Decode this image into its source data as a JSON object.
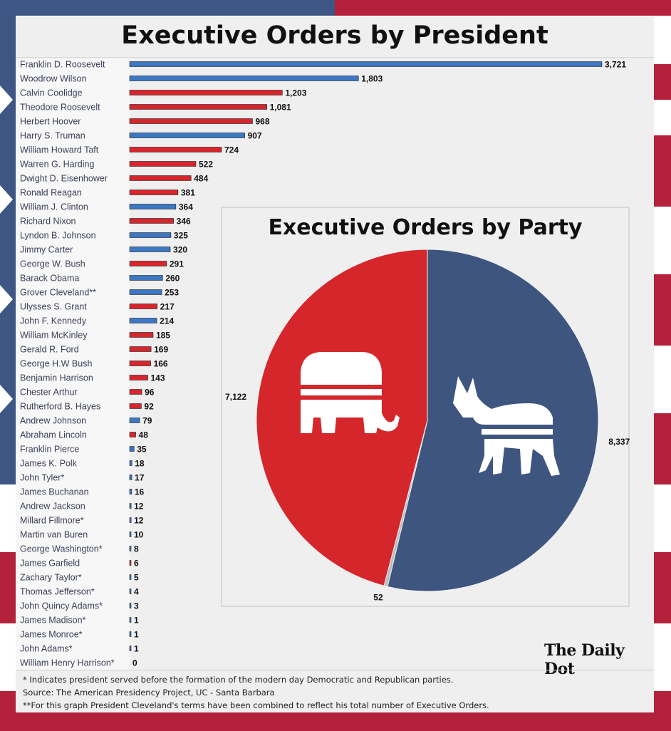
{
  "title": "Executive Orders by President",
  "colors": {
    "republican": "#d7252b",
    "democrat": "#3b77c2",
    "pie_democrat": "#3e557f",
    "pie_republican": "#d4262b",
    "pie_other": "#bdbdbd",
    "flag_red": "#b3213a",
    "flag_blue": "#3e5683"
  },
  "chart_data": [
    {
      "type": "bar",
      "orientation": "horizontal",
      "title": "Executive Orders by President",
      "categories": [
        "Franklin D. Roosevelt",
        "Woodrow Wilson",
        "Calvin Coolidge",
        "Theodore Roosevelt",
        "Herbert Hoover",
        "Harry S. Truman",
        "William Howard Taft",
        "Warren G. Harding",
        "Dwight D. Eisenhower",
        "Ronald Reagan",
        "William J. Clinton",
        "Richard Nixon",
        "Lyndon B. Johnson",
        "Jimmy Carter",
        "George W. Bush",
        "Barack Obama",
        "Grover Cleveland**",
        "Ulysses S. Grant",
        "John F. Kennedy",
        "William McKinley",
        "Gerald R. Ford",
        "George H.W Bush",
        "Benjamin Harrison",
        "Chester Arthur",
        "Rutherford B. Hayes",
        "Andrew Johnson",
        "Abraham Lincoln",
        "Franklin Pierce",
        "James K. Polk",
        "John Tyler*",
        "James Buchanan",
        "Andrew Jackson",
        "Millard Fillmore*",
        "Martin van Buren",
        "George Washington*",
        "James Garfield",
        "Zachary Taylor*",
        "Thomas Jefferson*",
        "John Quincy Adams*",
        "James Madison*",
        "James Monroe*",
        "John Adams*",
        "William Henry Harrison*"
      ],
      "values": [
        3721,
        1803,
        1203,
        1081,
        968,
        907,
        724,
        522,
        484,
        381,
        364,
        346,
        325,
        320,
        291,
        260,
        253,
        217,
        214,
        185,
        169,
        166,
        143,
        96,
        92,
        79,
        48,
        35,
        18,
        17,
        16,
        12,
        12,
        10,
        8,
        6,
        5,
        4,
        3,
        1,
        1,
        1,
        0
      ],
      "value_labels": [
        "3,721",
        "1,803",
        "1,203",
        "1,081",
        "968",
        "907",
        "724",
        "522",
        "484",
        "381",
        "364",
        "346",
        "325",
        "320",
        "291",
        "260",
        "253",
        "217",
        "214",
        "185",
        "169",
        "166",
        "143",
        "96",
        "92",
        "79",
        "48",
        "35",
        "18",
        "17",
        "16",
        "12",
        "12",
        "10",
        "8",
        "6",
        "5",
        "4",
        "3",
        "1",
        "1",
        "1",
        "0"
      ],
      "party": [
        "D",
        "D",
        "R",
        "R",
        "R",
        "D",
        "R",
        "R",
        "R",
        "R",
        "D",
        "R",
        "D",
        "D",
        "R",
        "D",
        "D",
        "R",
        "D",
        "R",
        "R",
        "R",
        "R",
        "R",
        "R",
        "D",
        "R",
        "D",
        "D",
        "D",
        "D",
        "D",
        "D",
        "D",
        "D",
        "R",
        "D",
        "D",
        "D",
        "D",
        "D",
        "D",
        "D"
      ],
      "xlim": [
        0,
        3721
      ]
    },
    {
      "type": "pie",
      "title": "Executive Orders by Party",
      "slices": [
        {
          "party": "Democratic",
          "value": 8337,
          "label": "8,337"
        },
        {
          "party": "Other",
          "value": 52,
          "label": "52"
        },
        {
          "party": "Republican",
          "value": 7122,
          "label": "7,122"
        }
      ]
    }
  ],
  "logo_text": "The Daily Dot",
  "footnotes": [
    "* Indicates president served before the formation of the modern day Democratic and Republican parties.",
    "Source: The American Presidency Project, UC - Santa Barbara",
    "**For this graph President Cleveland's terms have been combined to reflect his total number of Executive Orders."
  ]
}
